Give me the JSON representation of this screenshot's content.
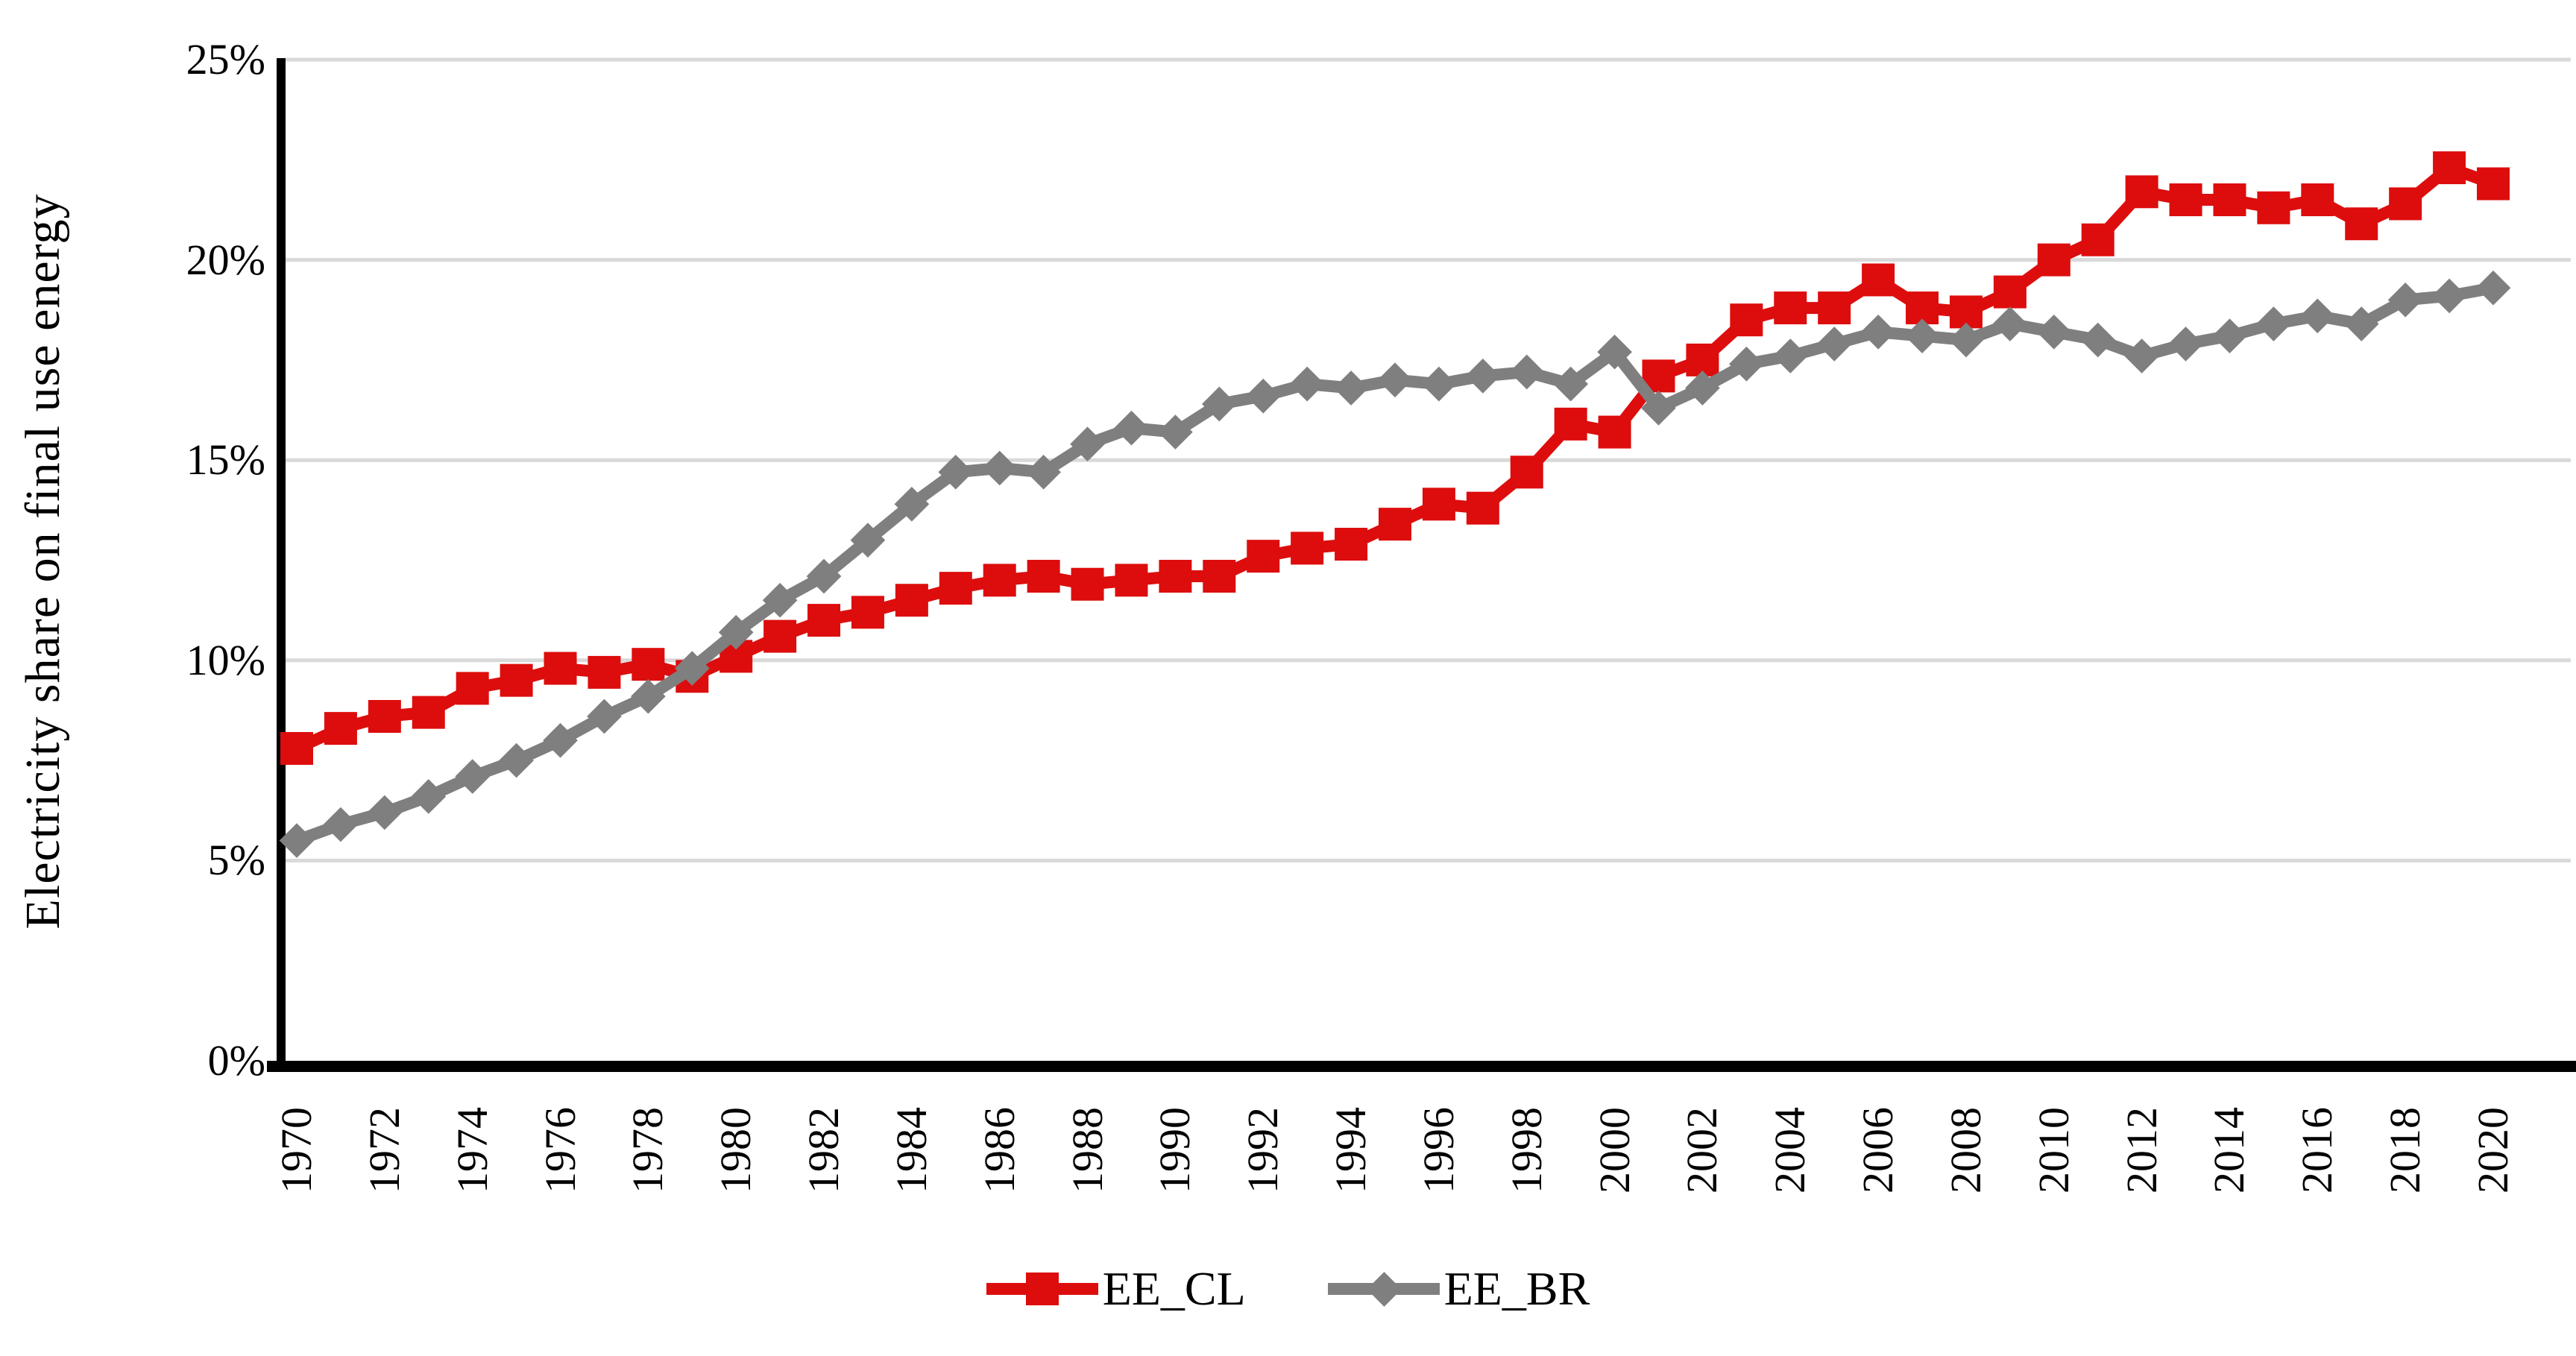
{
  "chart_data": {
    "type": "line",
    "title": "",
    "xlabel": "",
    "ylabel": "Electricity share on final use energy",
    "ylim": [
      0,
      25
    ],
    "ytick_step": 5,
    "y_tick_labels": [
      "0%",
      "5%",
      "10%",
      "15%",
      "20%",
      "25%"
    ],
    "grid": "horizontal",
    "legend_position": "bottom-center",
    "x": [
      1970,
      1971,
      1972,
      1973,
      1974,
      1975,
      1976,
      1977,
      1978,
      1979,
      1980,
      1981,
      1982,
      1983,
      1984,
      1985,
      1986,
      1987,
      1988,
      1989,
      1990,
      1991,
      1992,
      1993,
      1994,
      1995,
      1996,
      1997,
      1998,
      1999,
      2000,
      2001,
      2002,
      2003,
      2004,
      2005,
      2006,
      2007,
      2008,
      2009,
      2010,
      2011,
      2012,
      2013,
      2014,
      2015,
      2016,
      2017,
      2018,
      2019,
      2020
    ],
    "x_tick_labels": [
      "1970",
      "1972",
      "1974",
      "1976",
      "1978",
      "1980",
      "1982",
      "1984",
      "1986",
      "1988",
      "1990",
      "1992",
      "1994",
      "1996",
      "1998",
      "2000",
      "2002",
      "2004",
      "2006",
      "2008",
      "2010",
      "2012",
      "2014",
      "2016",
      "2018",
      "2020"
    ],
    "axis_color": "#000000",
    "gridline_color": "#d9d9d9",
    "series": [
      {
        "name": "EE_CL",
        "color": "#dd0d0d",
        "marker": "square",
        "values": [
          7.8,
          8.3,
          8.6,
          8.7,
          9.3,
          9.5,
          9.8,
          9.7,
          9.9,
          9.6,
          10.1,
          10.6,
          11.0,
          11.2,
          11.5,
          11.8,
          12.0,
          12.1,
          11.9,
          12.0,
          12.1,
          12.1,
          12.6,
          12.8,
          12.9,
          13.4,
          13.9,
          13.8,
          14.7,
          15.9,
          15.7,
          17.1,
          17.5,
          18.5,
          18.8,
          18.8,
          19.5,
          18.8,
          18.7,
          19.2,
          20.0,
          20.5,
          21.7,
          21.5,
          21.5,
          21.3,
          21.5,
          20.9,
          21.4,
          22.3,
          21.9
        ]
      },
      {
        "name": "EE_BR",
        "color": "#7f7f7f",
        "marker": "diamond",
        "values": [
          5.5,
          5.9,
          6.2,
          6.6,
          7.1,
          7.5,
          8.0,
          8.6,
          9.1,
          9.8,
          10.7,
          11.5,
          12.1,
          13.0,
          13.9,
          14.7,
          14.8,
          14.7,
          15.4,
          15.8,
          15.7,
          16.4,
          16.6,
          16.9,
          16.8,
          17.0,
          16.9,
          17.1,
          17.2,
          16.9,
          17.7,
          16.3,
          16.8,
          17.4,
          17.6,
          17.9,
          18.2,
          18.1,
          18.0,
          18.4,
          18.2,
          18.0,
          17.6,
          17.9,
          18.1,
          18.4,
          18.6,
          18.4,
          19.0,
          19.1,
          19.3
        ]
      }
    ]
  }
}
